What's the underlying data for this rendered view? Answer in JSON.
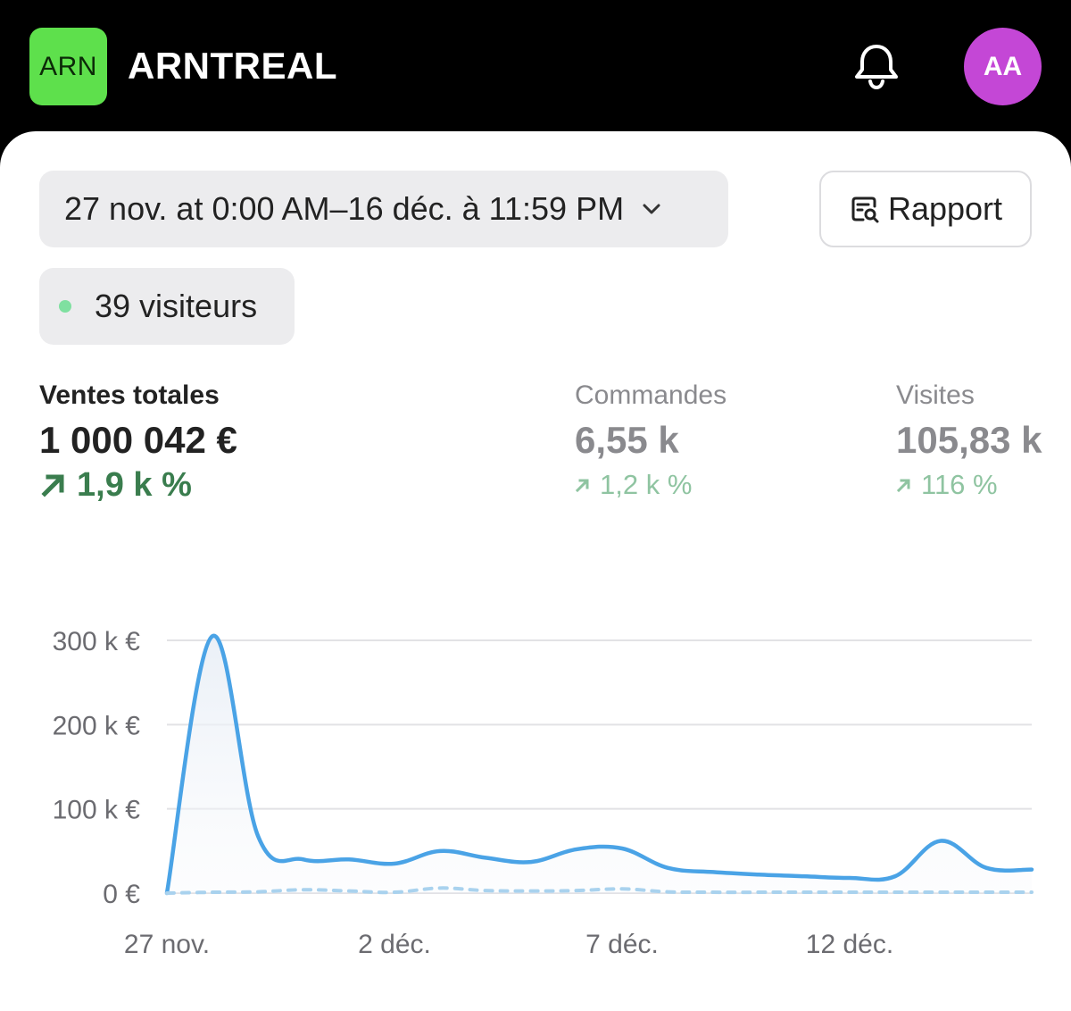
{
  "header": {
    "logo_text": "ARN",
    "store_name": "ARNTREAL",
    "bell_icon": "bell-icon",
    "avatar_initials": "AA",
    "logo_color": "#5ee04c",
    "avatar_color": "#c447d6"
  },
  "filters": {
    "date_range": "27 nov. at 0:00 AM–16 déc. à 11:59 PM",
    "report_label": "Rapport",
    "report_icon": "report-search-icon"
  },
  "live": {
    "visitors": "39 visiteurs",
    "dot_color": "#7fe0a0"
  },
  "metrics": [
    {
      "label": "Ventes totales",
      "value": "1 000 042 €",
      "change": "1,9 k %",
      "direction": "up"
    },
    {
      "label": "Commandes",
      "value": "6,55 k",
      "change": "1,2 k %",
      "direction": "up"
    },
    {
      "label": "Visites",
      "value": "105,83 k",
      "change": "116 %",
      "direction": "up"
    }
  ],
  "chart_data": {
    "type": "line",
    "y_ticks": [
      "300 k €",
      "200 k €",
      "100 k €",
      "0 €"
    ],
    "y_tick_values": [
      300000,
      200000,
      100000,
      0
    ],
    "x_tick_labels": [
      "27 nov.",
      "2 déc.",
      "7 déc.",
      "12 déc."
    ],
    "x_tick_indices": [
      0,
      5,
      10,
      15
    ],
    "ylim": [
      0,
      300000
    ],
    "grid": true,
    "series": [
      {
        "style": "solid",
        "color": "#4aa3e6",
        "fill": true,
        "x": [
          "27 nov.",
          "28 nov.",
          "29 nov.",
          "30 nov.",
          "1 déc.",
          "2 déc.",
          "3 déc.",
          "4 déc.",
          "5 déc.",
          "6 déc.",
          "7 déc.",
          "8 déc.",
          "9 déc.",
          "10 déc.",
          "11 déc.",
          "12 déc.",
          "13 déc.",
          "14 déc.",
          "15 déc.",
          "16 déc."
        ],
        "values": [
          0,
          305000,
          68000,
          40000,
          40000,
          35000,
          50000,
          42000,
          37000,
          52000,
          53000,
          30000,
          25000,
          22000,
          20000,
          18000,
          20000,
          62000,
          30000,
          28000
        ]
      },
      {
        "style": "dashed",
        "color": "#a9d2ee",
        "fill": false,
        "x": [
          "27 nov.",
          "28 nov.",
          "29 nov.",
          "30 nov.",
          "1 déc.",
          "2 déc.",
          "3 déc.",
          "4 déc.",
          "5 déc.",
          "6 déc.",
          "7 déc.",
          "8 déc.",
          "9 déc.",
          "10 déc.",
          "11 déc.",
          "12 déc.",
          "13 déc.",
          "14 déc.",
          "15 déc.",
          "16 déc."
        ],
        "values": [
          0,
          1000,
          1500,
          4000,
          2500,
          1000,
          6000,
          3000,
          2500,
          3000,
          5000,
          1500,
          1000,
          1000,
          1000,
          1000,
          1000,
          1000,
          1000,
          1000
        ]
      }
    ]
  }
}
